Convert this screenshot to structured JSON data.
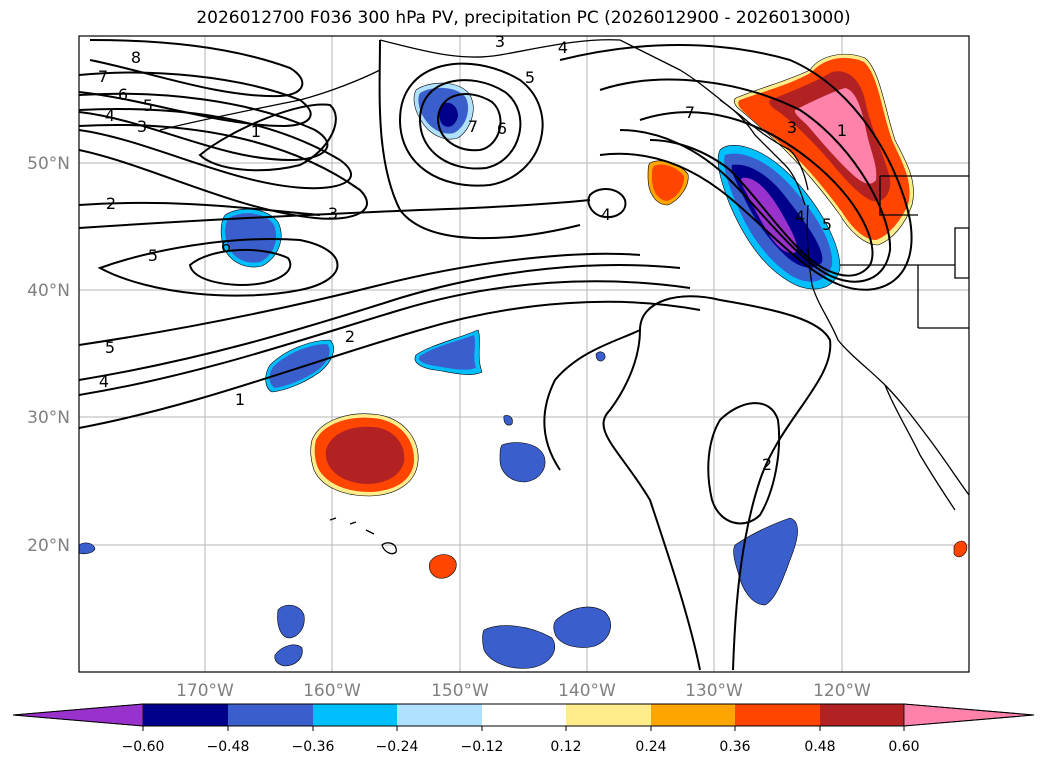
{
  "title": "2026012700 F036 300 hPa PV, precipitation PC (2026012900 - 2026013000)",
  "latitude_labels": [
    "50°N",
    "40°N",
    "30°N",
    "20°N"
  ],
  "longitude_labels": [
    "170°W",
    "160°W",
    "150°W",
    "140°W",
    "130°W",
    "120°W"
  ],
  "contour_labels": [
    "8",
    "7",
    "6",
    "5",
    "4",
    "3",
    "1",
    "2",
    "3",
    "5",
    "6",
    "5",
    "4",
    "2",
    "1",
    "3",
    "4",
    "5",
    "6",
    "7",
    "4",
    "7",
    "3",
    "1",
    "4",
    "5",
    "2"
  ],
  "colorbar": {
    "ticks": [
      "−0.60",
      "−0.48",
      "−0.36",
      "−0.24",
      "−0.12",
      "0.12",
      "0.24",
      "0.36",
      "0.48",
      "0.60"
    ],
    "colors": {
      "below": "#9932cc",
      "b1": "#00008b",
      "b2": "#3a5fcd",
      "b3": "#00bfff",
      "b4": "#b0e2ff",
      "b5": "#ffffff",
      "b6": "#ffec8b",
      "b7": "#ffa500",
      "b8": "#ff4500",
      "b9": "#b22222",
      "above": "#ff82ab"
    }
  }
}
